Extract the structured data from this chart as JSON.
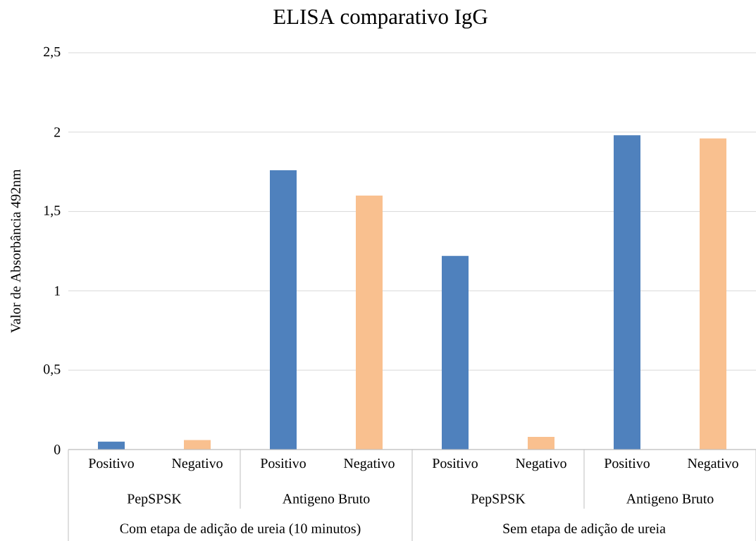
{
  "chart_data": {
    "type": "bar",
    "title": "ELISA comparativo IgG",
    "ylabel": "Valor de Absorbância 492nm",
    "categories": [
      "Positivo",
      "Negativo",
      "Positivo",
      "Negativo",
      "Positivo",
      "Negativo",
      "Positivo",
      "Negativo"
    ],
    "values": [
      0.05,
      0.06,
      1.76,
      1.6,
      1.22,
      0.08,
      1.98,
      1.96
    ],
    "colors": [
      "#4f81bd",
      "#f9c08f",
      "#4f81bd",
      "#f9c08f",
      "#4f81bd",
      "#f9c08f",
      "#4f81bd",
      "#f9c08f"
    ],
    "ylim": [
      0,
      2.5
    ],
    "yticks": [
      0,
      {
        "value": 0.5,
        "label": "0,5"
      },
      1,
      {
        "value": 1.5,
        "label": "1,5"
      },
      2,
      {
        "value": 2.5,
        "label": "2,5"
      }
    ],
    "grid": "y",
    "annotations": [
      "PepSPSK",
      "Antigeno Bruto",
      "PepSPSK",
      "Antigeno Bruto",
      "Com etapa de adição de ureia (10 minutos)",
      "Sem etapa de adição de ureia"
    ]
  }
}
